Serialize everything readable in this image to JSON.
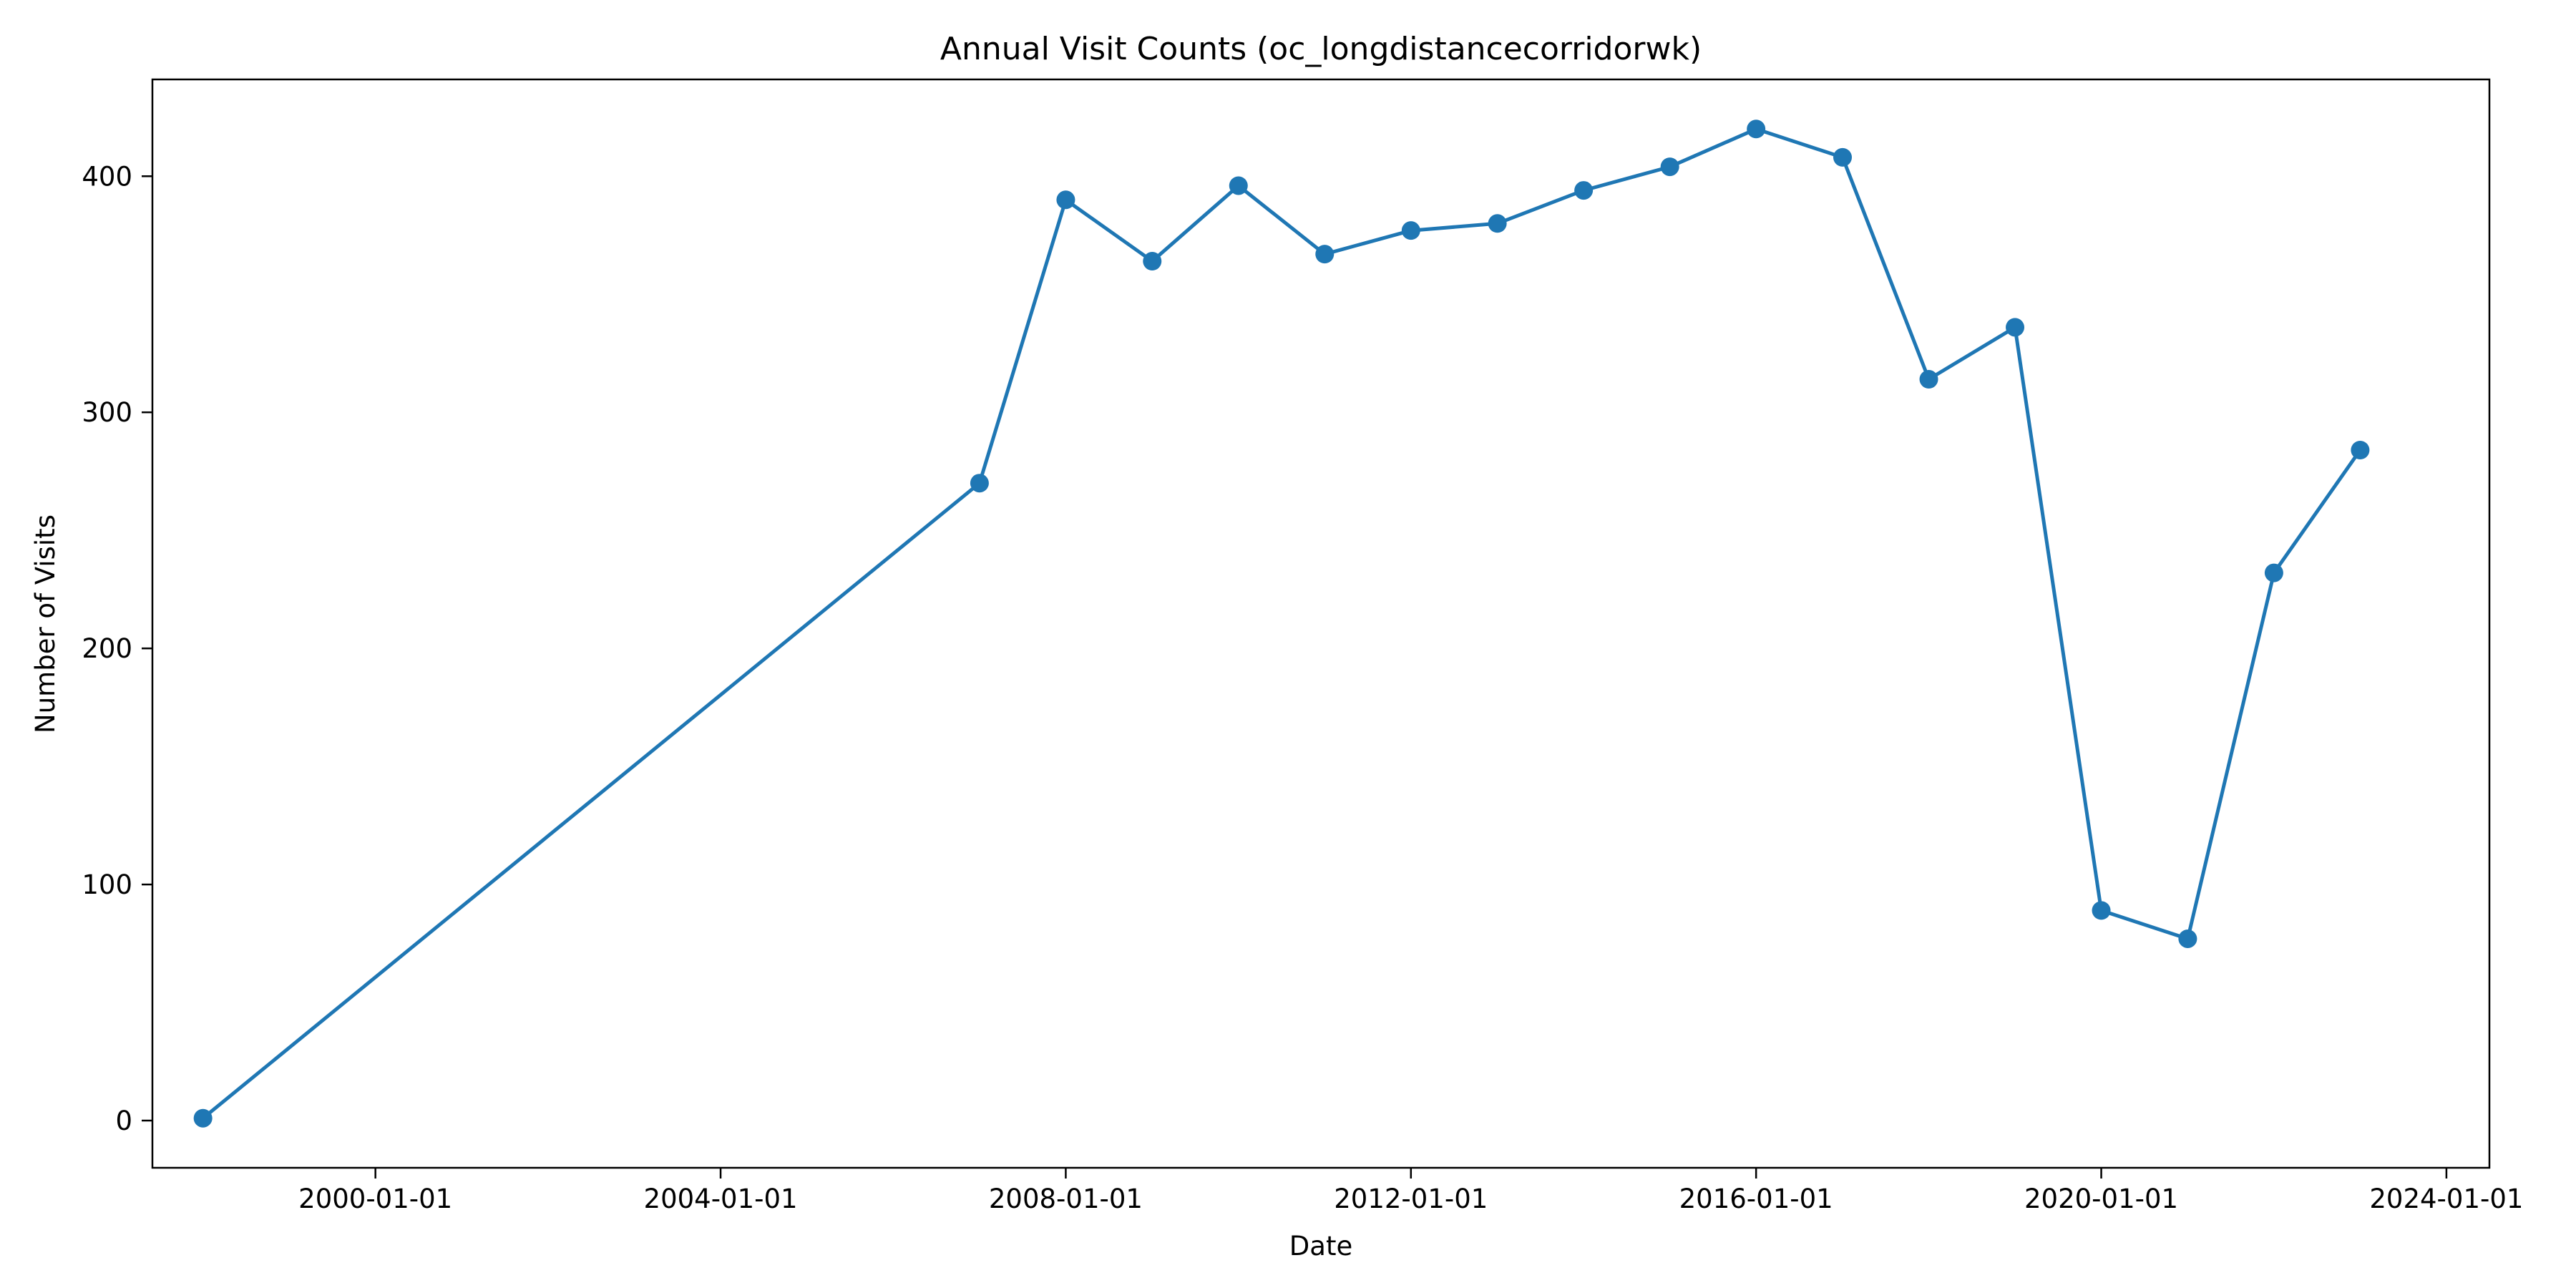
{
  "chart_data": {
    "type": "line",
    "title": "Annual Visit Counts (oc_longdistancecorridorwk)",
    "xlabel": "Date",
    "ylabel": "Number of Visits",
    "x_ticks": [
      "2000-01-01",
      "2004-01-01",
      "2008-01-01",
      "2012-01-01",
      "2016-01-01",
      "2020-01-01",
      "2024-01-01"
    ],
    "y_ticks": [
      0,
      100,
      200,
      300,
      400
    ],
    "xlim": [
      "1997-06-01",
      "2024-07-01"
    ],
    "ylim": [
      -20,
      441
    ],
    "grid": false,
    "legend": "none",
    "series": [
      {
        "color": "#1f77b4",
        "points": [
          {
            "x": "1998-01-01",
            "y": 1
          },
          {
            "x": "2007-01-01",
            "y": 270
          },
          {
            "x": "2008-01-01",
            "y": 390
          },
          {
            "x": "2009-01-01",
            "y": 364
          },
          {
            "x": "2010-01-01",
            "y": 396
          },
          {
            "x": "2011-01-01",
            "y": 367
          },
          {
            "x": "2012-01-01",
            "y": 377
          },
          {
            "x": "2013-01-01",
            "y": 380
          },
          {
            "x": "2014-01-01",
            "y": 394
          },
          {
            "x": "2015-01-01",
            "y": 404
          },
          {
            "x": "2016-01-01",
            "y": 420
          },
          {
            "x": "2017-01-01",
            "y": 408
          },
          {
            "x": "2018-01-01",
            "y": 314
          },
          {
            "x": "2019-01-01",
            "y": 336
          },
          {
            "x": "2020-01-01",
            "y": 89
          },
          {
            "x": "2021-01-01",
            "y": 77
          },
          {
            "x": "2022-01-01",
            "y": 232
          },
          {
            "x": "2023-01-01",
            "y": 284
          }
        ]
      }
    ]
  }
}
